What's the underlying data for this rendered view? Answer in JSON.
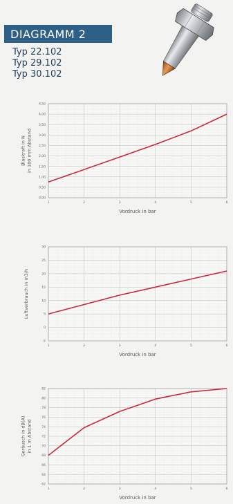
{
  "header": {
    "title": "DIAGRAMM 2",
    "types": [
      "Typ 22.102",
      "Typ 29.102",
      "Typ 30.102"
    ]
  },
  "colors": {
    "header_bg": "#2e5f86",
    "line": "#c8283a",
    "grid": "#b9b9b9"
  },
  "icon": "nozzle-product-image",
  "chart_data": [
    {
      "type": "line",
      "xlabel": "Vordruck in bar",
      "ylabel_lines": [
        "Blaskraft in N",
        "in 100 mm Abstand"
      ],
      "x": [
        1,
        2,
        3,
        4,
        5,
        6
      ],
      "x_ticks": [
        "1",
        "2",
        "3",
        "4",
        "5",
        "6"
      ],
      "y": [
        0.75,
        1.35,
        1.95,
        2.55,
        3.2,
        4.0
      ],
      "ylim": [
        0,
        4.5
      ],
      "y_ticks": [
        "0,00",
        "0,50",
        "1,00",
        "1,50",
        "2,00",
        "2,50",
        "3,00",
        "3,50",
        "4,00",
        "4,50"
      ],
      "grid": true
    },
    {
      "type": "line",
      "xlabel": "Vordruck in bar",
      "ylabel_lines": [
        "Luftverbrauch in m3/h"
      ],
      "x": [
        1,
        2,
        3,
        4,
        5,
        6
      ],
      "x_ticks": [
        "1",
        "2",
        "3",
        "4",
        "5",
        "6"
      ],
      "y": [
        5,
        8.5,
        12,
        15,
        18,
        21
      ],
      "ylim": [
        -5,
        30
      ],
      "y_ticks": [
        "-5",
        "0",
        "5",
        "10",
        "15",
        "20",
        "25",
        "30"
      ],
      "grid": true
    },
    {
      "type": "line",
      "xlabel": "Vordruck in bar",
      "ylabel_lines": [
        "Geräusch in dB(A)",
        "in 1 m Abstand"
      ],
      "x": [
        1,
        2,
        3,
        4,
        5,
        6
      ],
      "x_ticks": [
        "1",
        "2",
        "3",
        "4",
        "5",
        "6"
      ],
      "y": [
        68,
        73.8,
        77.2,
        79.8,
        81.3,
        82
      ],
      "ylim": [
        62,
        82
      ],
      "y_ticks": [
        "62",
        "64",
        "66",
        "68",
        "70",
        "72",
        "74",
        "76",
        "78",
        "80",
        "82"
      ],
      "grid": true
    }
  ]
}
